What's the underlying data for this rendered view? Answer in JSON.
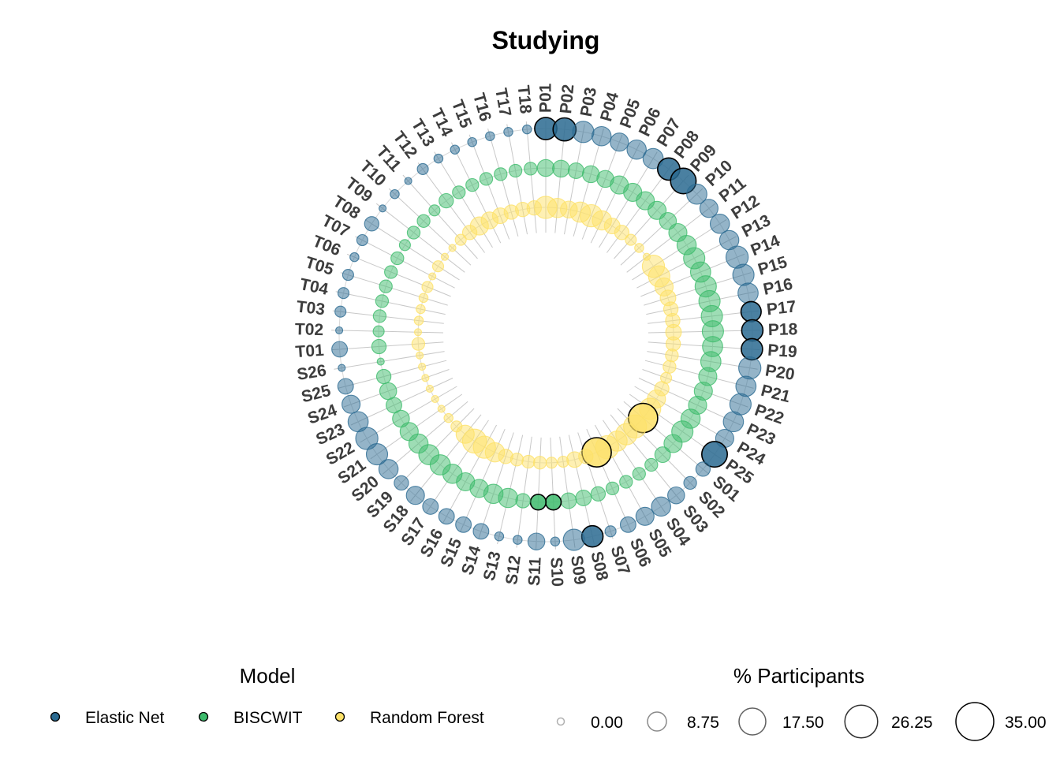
{
  "chart_data": {
    "type": "scatter",
    "subtype": "radial-bubble",
    "title": "Studying",
    "categories": [
      "P01",
      "P02",
      "P03",
      "P04",
      "P05",
      "P06",
      "P07",
      "P08",
      "P09",
      "P10",
      "P11",
      "P12",
      "P13",
      "P14",
      "P15",
      "P16",
      "P17",
      "P18",
      "P19",
      "P20",
      "P21",
      "P22",
      "P23",
      "P24",
      "P25",
      "S01",
      "S02",
      "S03",
      "S04",
      "S05",
      "S06",
      "S07",
      "S08",
      "S09",
      "S10",
      "S11",
      "S12",
      "S13",
      "S14",
      "S15",
      "S16",
      "S17",
      "S18",
      "S19",
      "S20",
      "S21",
      "S22",
      "S23",
      "S24",
      "S25",
      "S26",
      "T01",
      "T02",
      "T03",
      "T04",
      "T05",
      "T06",
      "T07",
      "T08",
      "T09",
      "T10",
      "T11",
      "T12",
      "T13",
      "T14",
      "T15",
      "T16",
      "T17",
      "T18"
    ],
    "series": [
      {
        "name": "Elastic Net",
        "color": "#2a6a91",
        "values": [
          12,
          13,
          11,
          9,
          8,
          9,
          10,
          12,
          16,
          10,
          8,
          9,
          9,
          12,
          11,
          10,
          10,
          11,
          11,
          12,
          10,
          11,
          10,
          8,
          16,
          5,
          4,
          7,
          9,
          8,
          6,
          3,
          11,
          11,
          2,
          7,
          2,
          2,
          6,
          6,
          6,
          6,
          8,
          5,
          9,
          11,
          12,
          10,
          8,
          6,
          0,
          6,
          0,
          3,
          3,
          3,
          2,
          3,
          5,
          0,
          2,
          0,
          3,
          2,
          2,
          2,
          2,
          2,
          2
        ]
      },
      {
        "name": "BISCWIT",
        "color": "#3dbb6c",
        "values": [
          7,
          7,
          6,
          7,
          7,
          8,
          8,
          8,
          8,
          7,
          8,
          9,
          11,
          10,
          11,
          11,
          11,
          11,
          10,
          10,
          8,
          8,
          8,
          9,
          11,
          8,
          6,
          4,
          4,
          4,
          4,
          5,
          6,
          6,
          6,
          6,
          5,
          9,
          9,
          8,
          8,
          9,
          10,
          10,
          9,
          8,
          7,
          6,
          7,
          5,
          0,
          5,
          3,
          4,
          4,
          4,
          4,
          4,
          3,
          4,
          4,
          3,
          5,
          4,
          4,
          4,
          4,
          4,
          4
        ]
      },
      {
        "name": "Random Forest",
        "color": "#fde168",
        "values": [
          12,
          9,
          7,
          10,
          12,
          9,
          6,
          5,
          3,
          2,
          1,
          12,
          11,
          8,
          6,
          5,
          5,
          6,
          5,
          4,
          4,
          3,
          5,
          8,
          11,
          21,
          13,
          11,
          10,
          13,
          21,
          5,
          6,
          3,
          3,
          4,
          4,
          4,
          5,
          9,
          12,
          14,
          8,
          3,
          2,
          1,
          0,
          0,
          0,
          0,
          0,
          4,
          0,
          2,
          2,
          2,
          3,
          0,
          3,
          0,
          0,
          3,
          5,
          8,
          7,
          6,
          5,
          5,
          5
        ]
      }
    ],
    "legend": {
      "color_title": "Model",
      "size_title": "% Participants",
      "size_breaks": [
        "0.00",
        "8.75",
        "17.50",
        "26.25",
        "35.00"
      ],
      "size_break_values": [
        0,
        8.75,
        17.5,
        26.25,
        35
      ],
      "placement": "bottom"
    },
    "highlighted": [
      {
        "series": "Elastic Net",
        "categories": [
          "P01",
          "P02",
          "P08",
          "P09",
          "P17",
          "P18",
          "P19",
          "P25",
          "S08"
        ]
      },
      {
        "series": "BISCWIT",
        "categories": [
          "S10",
          "S11"
        ]
      },
      {
        "series": "Random Forest",
        "categories": [
          "S01",
          "S06"
        ]
      }
    ],
    "grid": true
  }
}
